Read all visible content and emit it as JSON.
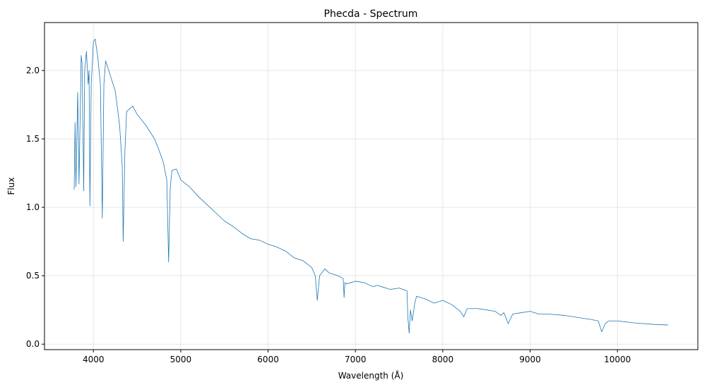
{
  "chart_data": {
    "type": "line",
    "title": "Phecda - Spectrum",
    "xlabel": "Wavelength (Å)",
    "ylabel": "Flux",
    "color": "#1f77b4",
    "grid": true,
    "xlim": [
      3440,
      10920
    ],
    "ylim": [
      -0.04,
      2.35
    ],
    "xticks": [
      4000,
      5000,
      6000,
      7000,
      8000,
      9000,
      10000
    ],
    "yticks": [
      {
        "value": 0,
        "label": "0.0"
      },
      0.5,
      {
        "value": 1,
        "label": "1.0"
      },
      1.5,
      {
        "value": 2,
        "label": "2.0"
      }
    ],
    "x": [
      3780,
      3790,
      3800,
      3820,
      3835,
      3860,
      3870,
      3889,
      3900,
      3920,
      3940,
      3950,
      3960,
      3975,
      4000,
      4020,
      4050,
      4080,
      4102,
      4120,
      4140,
      4200,
      4250,
      4300,
      4330,
      4341,
      4360,
      4380,
      4450,
      4500,
      4600,
      4700,
      4750,
      4800,
      4840,
      4861,
      4880,
      4900,
      4950,
      5000,
      5100,
      5200,
      5300,
      5400,
      5500,
      5600,
      5700,
      5800,
      5900,
      6000,
      6100,
      6200,
      6300,
      6400,
      6500,
      6540,
      6563,
      6590,
      6650,
      6700,
      6800,
      6860,
      6870,
      6880,
      6900,
      7000,
      7100,
      7200,
      7250,
      7300,
      7400,
      7500,
      7590,
      7600,
      7615,
      7630,
      7650,
      7680,
      7700,
      7800,
      7900,
      8000,
      8100,
      8200,
      8240,
      8280,
      8400,
      8500,
      8600,
      8665,
      8700,
      8750,
      8800,
      8900,
      9000,
      9100,
      9200,
      9400,
      9600,
      9700,
      9780,
      9820,
      9860,
      9900,
      10000,
      10200,
      10400,
      10580
    ],
    "values": [
      1.13,
      1.62,
      1.15,
      1.84,
      1.17,
      2.11,
      2.05,
      1.12,
      2.0,
      2.14,
      1.9,
      2.0,
      1.01,
      1.9,
      2.21,
      2.23,
      2.1,
      1.9,
      0.92,
      1.9,
      2.07,
      1.95,
      1.85,
      1.6,
      1.3,
      0.75,
      1.4,
      1.7,
      1.74,
      1.68,
      1.6,
      1.5,
      1.42,
      1.33,
      1.2,
      0.6,
      1.15,
      1.27,
      1.28,
      1.2,
      1.15,
      1.08,
      1.02,
      0.96,
      0.9,
      0.86,
      0.81,
      0.77,
      0.76,
      0.73,
      0.71,
      0.68,
      0.63,
      0.61,
      0.56,
      0.5,
      0.32,
      0.5,
      0.55,
      0.52,
      0.5,
      0.48,
      0.34,
      0.45,
      0.44,
      0.46,
      0.45,
      0.42,
      0.43,
      0.42,
      0.4,
      0.41,
      0.39,
      0.2,
      0.08,
      0.25,
      0.17,
      0.3,
      0.35,
      0.33,
      0.3,
      0.32,
      0.29,
      0.24,
      0.2,
      0.26,
      0.26,
      0.25,
      0.24,
      0.21,
      0.23,
      0.15,
      0.22,
      0.23,
      0.24,
      0.22,
      0.22,
      0.21,
      0.19,
      0.18,
      0.17,
      0.09,
      0.15,
      0.17,
      0.17,
      0.155,
      0.145,
      0.14
    ]
  }
}
